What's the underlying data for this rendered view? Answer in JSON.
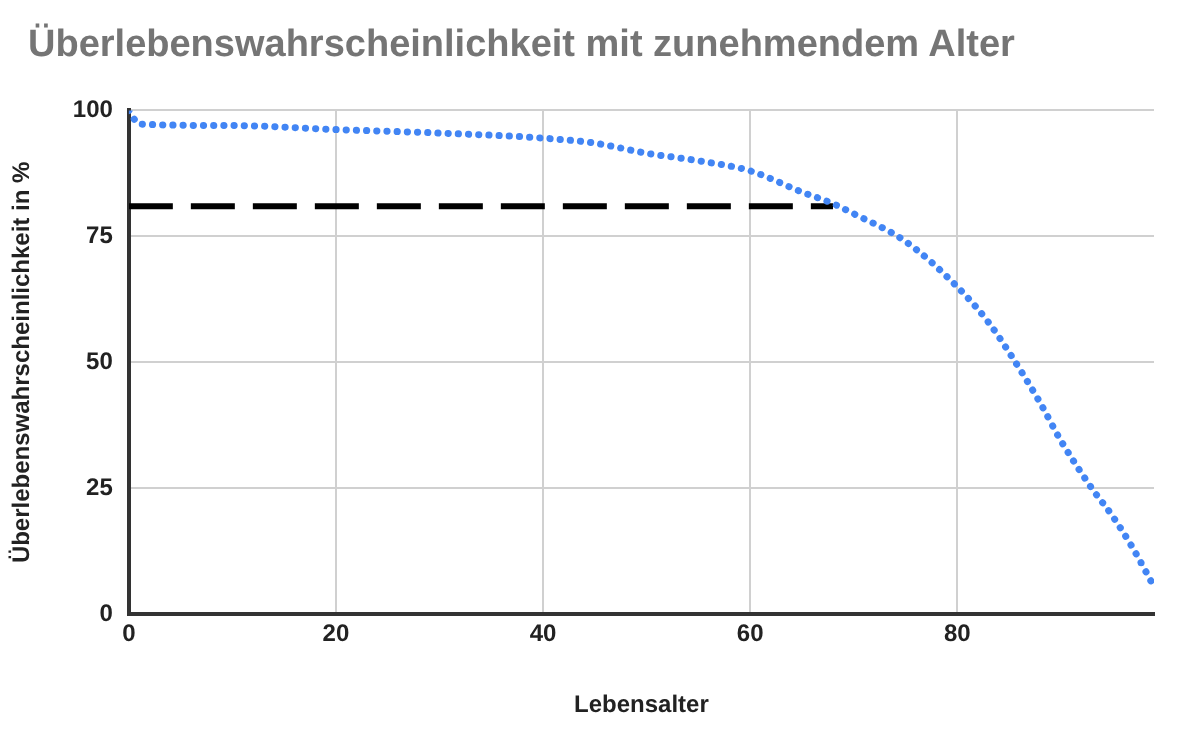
{
  "chart_data": {
    "type": "line",
    "title": "Überlebenswahrscheinlichkeit mit zunehmendem Alter",
    "xlabel": "Lebensalter",
    "ylabel": "Überlebenswahrscheinlichkeit in %",
    "xlim": [
      0,
      99
    ],
    "xticks": [
      0,
      20,
      40,
      60,
      80
    ],
    "ylim": [
      0,
      100
    ],
    "yticks": [
      0,
      25,
      50,
      75,
      100
    ],
    "grid": true,
    "legend": false,
    "marker": "none",
    "series": [
      {
        "color": "#4285f4",
        "line_style": "dotted",
        "x": [
          0,
          1,
          10,
          20,
          30,
          40,
          45,
          50,
          55,
          60,
          65,
          68,
          70,
          75,
          80,
          83,
          85,
          88,
          90,
          93,
          95,
          97,
          99
        ],
        "values": [
          100,
          97.3,
          97,
          96.2,
          95.5,
          94.5,
          93.5,
          91.5,
          90,
          88,
          83.8,
          81.5,
          79.5,
          74,
          65,
          58,
          52,
          42,
          34.5,
          25,
          19.5,
          13,
          5.5
        ]
      },
      {
        "color": "#000000",
        "line_style": "dashed",
        "x": [
          0,
          68
        ],
        "values": [
          81,
          81
        ]
      }
    ]
  }
}
